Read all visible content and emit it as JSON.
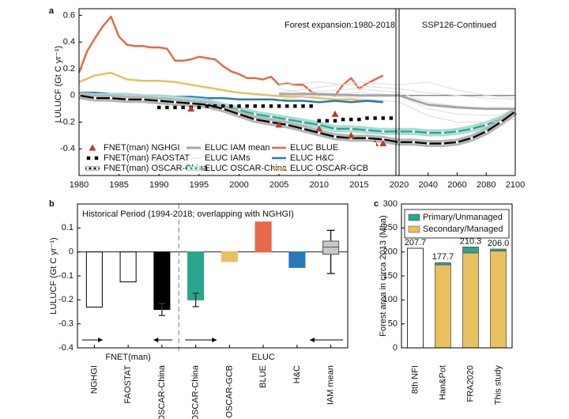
{
  "chart_data": [
    {
      "type": "line",
      "panel_label": "a",
      "annotations": [
        "Forest expansion:1980-2018",
        "SSP126-Continued"
      ],
      "y_label": "LULUCF (Gt C yr⁻¹)",
      "xlim": [
        1980,
        2100
      ],
      "xbreak": 2020,
      "xticks": [
        1980,
        1985,
        1990,
        1995,
        2000,
        2005,
        2010,
        2015,
        2020,
        2040,
        2060,
        2080,
        2100
      ],
      "ylim": [
        -0.6,
        0.65
      ],
      "yticks": [
        -0.4,
        -0.2,
        0,
        0.2,
        0.4,
        0.6
      ],
      "series": [
        {
          "name": "FNET(man) NGHGI",
          "color": "#c0392b",
          "marker": "triangle",
          "x": [
            1994,
            2005,
            2010,
            2012,
            2014,
            2017,
            2018
          ],
          "values": [
            -0.1,
            -0.22,
            -0.25,
            -0.14,
            -0.3,
            -0.36,
            -0.36
          ]
        },
        {
          "name": "FNET(man) FAOSTAT",
          "color": "#000000",
          "marker": "square",
          "x": [
            1990,
            1991,
            1992,
            1993,
            1994,
            1995,
            1996,
            1997,
            1998,
            1999,
            2000,
            2001,
            2002,
            2003,
            2004,
            2005,
            2006,
            2007,
            2008,
            2009,
            2010,
            2011,
            2012,
            2013,
            2014,
            2015,
            2016,
            2017,
            2018,
            2019
          ],
          "values": [
            -0.09,
            -0.09,
            -0.09,
            -0.09,
            -0.09,
            -0.09,
            -0.08,
            -0.08,
            -0.08,
            -0.08,
            -0.08,
            -0.08,
            -0.08,
            -0.08,
            -0.08,
            -0.08,
            -0.08,
            -0.08,
            -0.08,
            -0.08,
            -0.19,
            -0.19,
            -0.19,
            -0.18,
            -0.18,
            -0.18,
            -0.17,
            -0.17,
            -0.17,
            -0.17
          ]
        },
        {
          "name": "FNET(man) OSCAR-China",
          "color": "#000000",
          "line_width": 2.2,
          "marker": "square-white",
          "band_color": "#b5b5b5",
          "x": [
            1980,
            1982,
            1984,
            1986,
            1988,
            1990,
            1992,
            1994,
            1996,
            1998,
            2000,
            2002,
            2004,
            2006,
            2008,
            2010,
            2012,
            2014,
            2016,
            2018,
            2020,
            2030,
            2040,
            2050,
            2060,
            2070,
            2080,
            2090,
            2100
          ],
          "values": [
            0.0,
            -0.02,
            -0.02,
            -0.03,
            -0.03,
            -0.04,
            -0.05,
            -0.06,
            -0.07,
            -0.1,
            -0.14,
            -0.18,
            -0.2,
            -0.22,
            -0.25,
            -0.28,
            -0.31,
            -0.32,
            -0.32,
            -0.33,
            -0.35,
            -0.35,
            -0.36,
            -0.36,
            -0.35,
            -0.32,
            -0.27,
            -0.2,
            -0.12
          ]
        },
        {
          "name": "ELUC IAM mean",
          "color": "#a6a6a6",
          "line_width": 3,
          "x": [
            2005,
            2010,
            2015,
            2020,
            2040,
            2060,
            2080,
            2100
          ],
          "values": [
            0.01,
            0.01,
            0.0,
            0.0,
            -0.07,
            -0.09,
            -0.1,
            -0.1
          ]
        },
        {
          "name": "ELUC IAMs",
          "color": "#dcdcdc",
          "line_width": 1,
          "x": [
            2005,
            2010,
            2015,
            2020,
            2040,
            2060,
            2080,
            2100
          ],
          "values": [
            [
              0.08,
              0.1,
              0.07,
              0.05,
              0.02,
              0.0,
              -0.02,
              -0.03
            ],
            [
              0.0,
              0.03,
              0.05,
              0.02,
              -0.05,
              -0.08,
              -0.1,
              -0.1
            ],
            [
              -0.03,
              0.0,
              -0.02,
              -0.05,
              -0.15,
              -0.2,
              -0.2,
              -0.18
            ],
            [
              0.05,
              0.0,
              0.02,
              0.0,
              -0.1,
              -0.14,
              -0.15,
              -0.15
            ],
            [
              0.02,
              0.06,
              0.1,
              0.08,
              0.1,
              0.04,
              0.0,
              -0.02
            ]
          ]
        },
        {
          "name": "ELUC OSCAR-China",
          "color": "#2aa58e",
          "line_width": 2.2,
          "marker": "circle-white",
          "band_color": "#a8ddd3",
          "x": [
            1980,
            1982,
            1984,
            1986,
            1988,
            1990,
            1992,
            1994,
            1996,
            1998,
            2000,
            2002,
            2004,
            2006,
            2008,
            2010,
            2012,
            2014,
            2016,
            2018,
            2020,
            2030,
            2040,
            2050,
            2060,
            2070,
            2080,
            2090,
            2100
          ],
          "values": [
            0.0,
            -0.01,
            -0.01,
            -0.01,
            -0.02,
            -0.02,
            -0.03,
            -0.04,
            -0.05,
            -0.08,
            -0.11,
            -0.14,
            -0.16,
            -0.18,
            -0.2,
            -0.22,
            -0.25,
            -0.25,
            -0.26,
            -0.27,
            -0.27,
            -0.27,
            -0.28,
            -0.28,
            -0.27,
            -0.25,
            -0.22,
            -0.18,
            -0.12
          ]
        },
        {
          "name": "ELUC BLUE",
          "color": "#e8694a",
          "line_width": 2.5,
          "x": [
            1980,
            1981,
            1982,
            1983,
            1984,
            1985,
            1986,
            1987,
            1988,
            1989,
            1990,
            1991,
            1992,
            1993,
            1994,
            1995,
            1996,
            1997,
            1998,
            1999,
            2000,
            2001,
            2002,
            2003,
            2004,
            2005,
            2006,
            2007,
            2008,
            2009,
            2010,
            2011,
            2012,
            2013,
            2014,
            2015,
            2016,
            2017,
            2018
          ],
          "values": [
            0.17,
            0.33,
            0.43,
            0.52,
            0.59,
            0.44,
            0.38,
            0.37,
            0.37,
            0.36,
            0.36,
            0.35,
            0.26,
            0.26,
            0.27,
            0.29,
            0.28,
            0.27,
            0.22,
            0.18,
            0.16,
            0.13,
            0.13,
            0.12,
            0.14,
            0.08,
            0.09,
            0.08,
            0.08,
            0.03,
            0.0,
            0.01,
            0.0,
            0.08,
            0.13,
            0.05,
            0.09,
            0.12,
            0.15
          ]
        },
        {
          "name": "ELUC H&C",
          "color": "#2a78b8",
          "line_width": 2.5,
          "x": [
            1980,
            1982,
            1984,
            1986,
            1988,
            1990,
            1992,
            1994,
            1996,
            1998,
            2000,
            2002,
            2004,
            2006,
            2008,
            2010,
            2012,
            2014,
            2016,
            2018
          ],
          "values": [
            0.02,
            0.02,
            0.01,
            0.01,
            0.0,
            0.0,
            -0.01,
            -0.01,
            -0.02,
            -0.02,
            -0.03,
            -0.03,
            -0.03,
            -0.04,
            -0.04,
            -0.05,
            -0.04,
            -0.05,
            -0.04,
            -0.05
          ]
        },
        {
          "name": "ELUC OSCAR-GCB",
          "color": "#e8c060",
          "line_width": 2.5,
          "x": [
            1980,
            1982,
            1984,
            1986,
            1988,
            1990,
            1992,
            1994,
            1996,
            1998,
            2000,
            2002,
            2004,
            2006,
            2008,
            2010,
            2012,
            2014,
            2016,
            2018
          ],
          "values": [
            0.1,
            0.15,
            0.17,
            0.12,
            0.11,
            0.11,
            0.1,
            0.08,
            0.06,
            0.04,
            0.02,
            0.01,
            0.0,
            -0.01,
            -0.01,
            -0.02,
            -0.03,
            -0.03,
            -0.04,
            -0.04
          ]
        }
      ]
    },
    {
      "type": "bar",
      "panel_label": "b",
      "title": "Historical Period (1994-2018; overlapping with NGHGI)",
      "y_label": "LULUCF (Gt C yr⁻¹)",
      "group_labels": [
        "FNET(man)",
        "ELUC"
      ],
      "categories": [
        "NGHGI",
        "FAOSTAT",
        "OSCAR-China",
        "OSCAR-China",
        "OSCAR-GCB",
        "BLUE",
        "H&C",
        "IAM mean"
      ],
      "values": [
        -0.23,
        -0.125,
        -0.24,
        -0.2,
        -0.04,
        0.125,
        -0.065,
        null
      ],
      "errors": [
        null,
        null,
        0.025,
        0.028,
        null,
        null,
        null,
        null
      ],
      "boxes": [
        null,
        null,
        null,
        null,
        null,
        null,
        null,
        {
          "min": -0.09,
          "q1": -0.01,
          "median": 0.02,
          "q3": 0.045,
          "max": 0.09
        }
      ],
      "colors": [
        "#ffffff",
        "#ffffff",
        "#000000",
        "#2aa58e",
        "#e8c060",
        "#e8694a",
        "#2a78b8",
        "#c8c8c8"
      ],
      "ylim": [
        -0.4,
        0.2
      ],
      "yticks": [
        -0.4,
        -0.3,
        -0.2,
        -0.1,
        0,
        0.1
      ]
    },
    {
      "type": "stacked-bar",
      "panel_label": "c",
      "y_label": "Forest area in circa 2013 (Mha)",
      "categories": [
        "8th NFI",
        "Han&Pot",
        "FRA2020",
        "This study"
      ],
      "series": [
        {
          "color": "#ffffff",
          "values": [
            207.7,
            null,
            null,
            null
          ]
        },
        {
          "name": "Secondary/Managed",
          "color": "#e8c060",
          "values": [
            null,
            173,
            198,
            202
          ]
        },
        {
          "name": "Primary/Unmanaged",
          "color": "#2aa58e",
          "values": [
            null,
            4.7,
            12.3,
            4.0
          ]
        }
      ],
      "totals": {
        "values": [
          207.7,
          177.7,
          210.3,
          206
        ],
        "value_labels": [
          "207.7",
          "177.7",
          "210.3",
          "206.0"
        ]
      },
      "ylim": [
        0,
        300
      ],
      "yticks": [
        0,
        50,
        100,
        150,
        200,
        250,
        300
      ]
    }
  ]
}
